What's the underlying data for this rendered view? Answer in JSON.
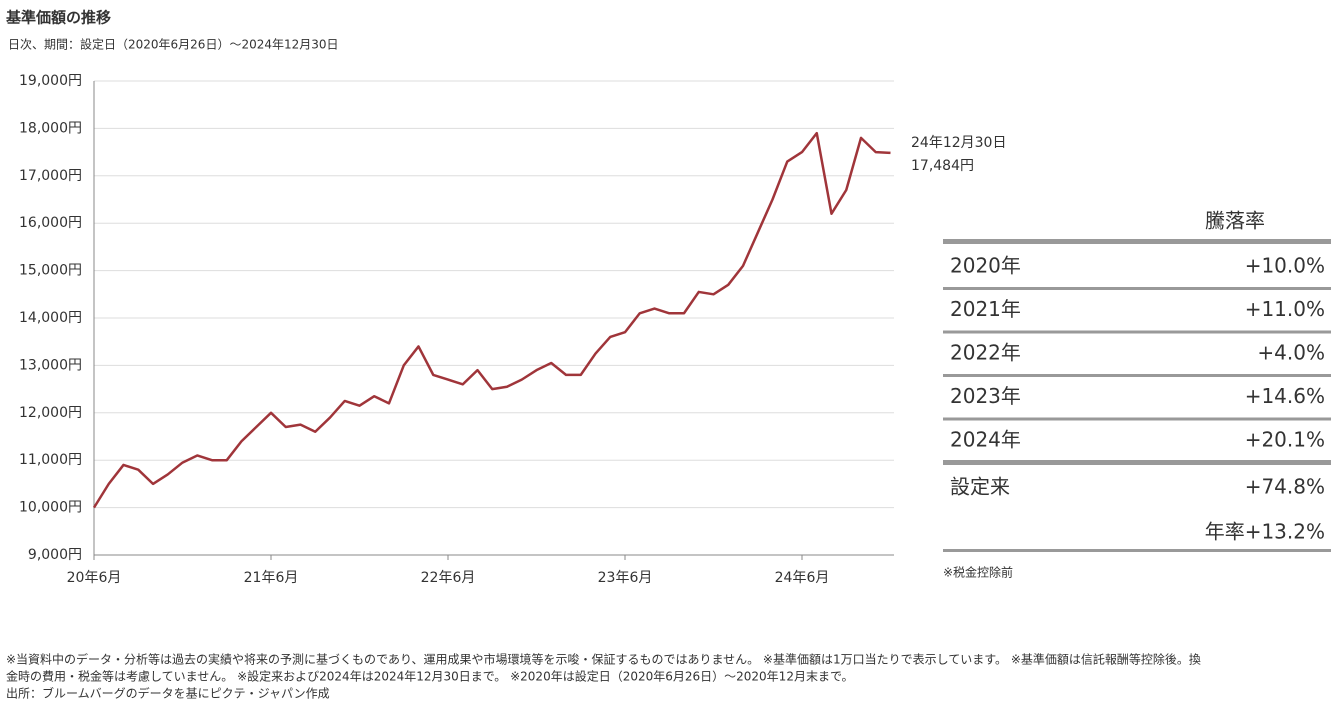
{
  "header": {
    "title": "基準価額の推移",
    "subtitle": "日次、期間：設定日（2020年6月26日）～2024年12月30日"
  },
  "chart_data": {
    "type": "line",
    "color": "#a0353a",
    "grid": true,
    "x": [
      "2020-06",
      "2020-07",
      "2020-08",
      "2020-09",
      "2020-10",
      "2020-11",
      "2020-12",
      "2021-01",
      "2021-02",
      "2021-03",
      "2021-04",
      "2021-05",
      "2021-06",
      "2021-07",
      "2021-08",
      "2021-09",
      "2021-10",
      "2021-11",
      "2021-12",
      "2022-01",
      "2022-02",
      "2022-03",
      "2022-04",
      "2022-05",
      "2022-06",
      "2022-07",
      "2022-08",
      "2022-09",
      "2022-10",
      "2022-11",
      "2022-12",
      "2023-01",
      "2023-02",
      "2023-03",
      "2023-04",
      "2023-05",
      "2023-06",
      "2023-07",
      "2023-08",
      "2023-09",
      "2023-10",
      "2023-11",
      "2023-12",
      "2024-01",
      "2024-02",
      "2024-03",
      "2024-04",
      "2024-05",
      "2024-06",
      "2024-07",
      "2024-08",
      "2024-09",
      "2024-10",
      "2024-11",
      "2024-12"
    ],
    "values": [
      10000,
      10500,
      10900,
      10800,
      10500,
      10700,
      10950,
      11100,
      11000,
      11000,
      11400,
      11700,
      12000,
      11700,
      11750,
      11600,
      11900,
      12250,
      12150,
      12350,
      12200,
      13000,
      13400,
      12800,
      12700,
      12600,
      12900,
      12500,
      12550,
      12700,
      12900,
      13050,
      12800,
      12800,
      13250,
      13600,
      13700,
      14100,
      14200,
      14100,
      14100,
      14550,
      14500,
      14700,
      15100,
      15800,
      16500,
      17300,
      17500,
      17900,
      16200,
      16700,
      17800,
      17500,
      17484
    ],
    "xlim": [
      "2020-06",
      "2024-12"
    ],
    "xticks": [
      {
        "value": "2020-06",
        "label": "20年6月"
      },
      {
        "value": "2021-06",
        "label": "21年6月"
      },
      {
        "value": "2022-06",
        "label": "22年6月"
      },
      {
        "value": "2023-06",
        "label": "23年6月"
      },
      {
        "value": "2024-06",
        "label": "24年6月"
      }
    ],
    "ylim": [
      9000,
      19000
    ],
    "yticks": [
      {
        "value": 9000,
        "label": "9,000円"
      },
      {
        "value": 10000,
        "label": "10,000円"
      },
      {
        "value": 11000,
        "label": "11,000円"
      },
      {
        "value": 12000,
        "label": "12,000円"
      },
      {
        "value": 13000,
        "label": "13,000円"
      },
      {
        "value": 14000,
        "label": "14,000円"
      },
      {
        "value": 15000,
        "label": "15,000円"
      },
      {
        "value": 16000,
        "label": "16,000円"
      },
      {
        "value": 17000,
        "label": "17,000円"
      },
      {
        "value": 18000,
        "label": "18,000円"
      },
      {
        "value": 19000,
        "label": "19,000円"
      }
    ],
    "end_date_label": "24年12月30日",
    "end_value_label": "17,484円"
  },
  "returns": {
    "header": "騰落率",
    "rows": [
      [
        "2020年",
        "+10.0%"
      ],
      [
        "2021年",
        "+11.0%"
      ],
      [
        "2022年",
        "+4.0%"
      ],
      [
        "2023年",
        "+14.6%"
      ],
      [
        "2024年",
        "+20.1%"
      ]
    ],
    "since_inception": {
      "label": "設定来",
      "value": "+74.8%",
      "annualized": "年率+13.2%"
    },
    "note": "※税金控除前"
  },
  "footnotes": [
    "※当資料中のデータ・分析等は過去の実績や将来の予測に基づくものであり、運用成果や市場環境等を示唆・保証するものではありません。 ※基準価額は1万口当たりで表示しています。 ※基準価額は信託報酬等控除後。換",
    "金時の費用・税金等は考慮していません。 ※設定来および2024年は2024年12月30日まで。 ※2020年は設定日（2020年6月26日）～2020年12月末まで。",
    "出所：ブルームバーグのデータを基にピクテ・ジャパン作成"
  ]
}
